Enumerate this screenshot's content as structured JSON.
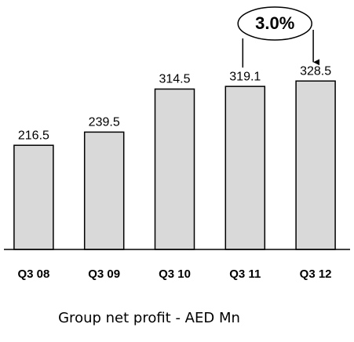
{
  "chart_data": {
    "type": "bar",
    "caption": "Group net profit - AED Mn",
    "categories": [
      "Q3 08",
      "Q3 09",
      "Q3 10",
      "Q3 11",
      "Q3 12"
    ],
    "values": [
      216.5,
      239.5,
      314.5,
      319.1,
      328.5
    ],
    "color": "#d9d9d9",
    "ylim": [
      35,
      415
    ],
    "annotation": "3.0%"
  }
}
